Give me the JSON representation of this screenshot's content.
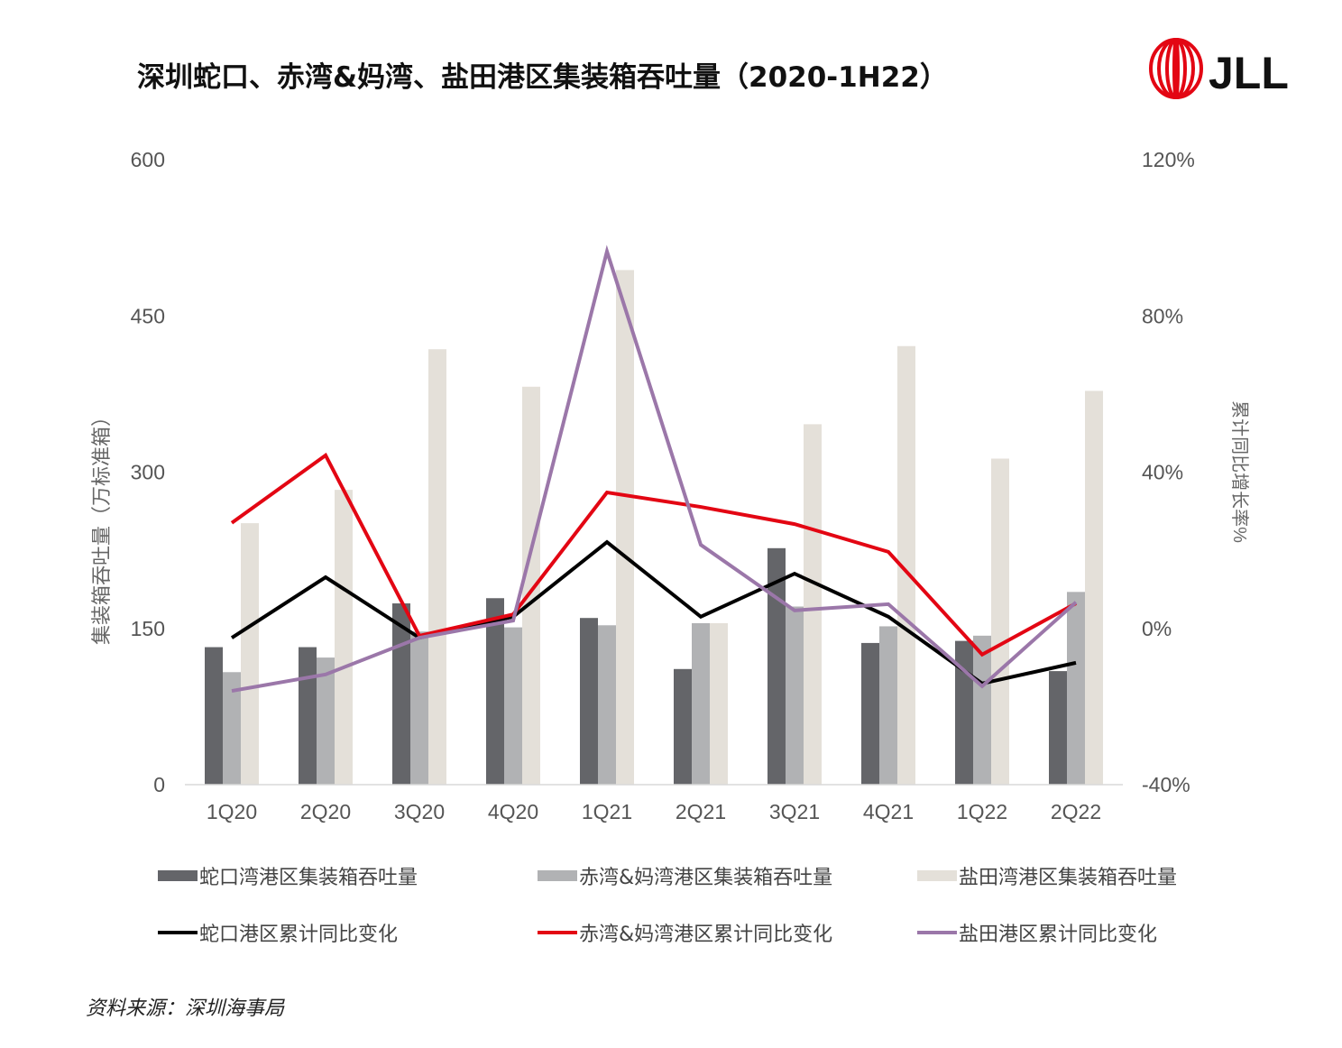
{
  "title": "深圳蛇口、赤湾&妈湾、盐田港区集装箱吞吐量（2020-1H22）",
  "logo": {
    "text": "JLL",
    "color": "#E30613"
  },
  "source": "资料来源：深圳海事局",
  "chart_data": {
    "type": "bar+line",
    "categories": [
      "1Q20",
      "2Q20",
      "3Q20",
      "4Q20",
      "1Q21",
      "2Q21",
      "3Q21",
      "4Q21",
      "1Q22",
      "2Q22"
    ],
    "ylabel": "集装箱吞吐量（万标准箱）",
    "y2label": "累计同比增长率%",
    "ylim": [
      0,
      600
    ],
    "yticks": [
      "0",
      "150",
      "300",
      "450",
      "600"
    ],
    "y2lim": [
      -40,
      120
    ],
    "y2ticks": [
      "-40%",
      "0%",
      "40%",
      "80%",
      "120%"
    ],
    "grid": false,
    "legend_position": "bottom",
    "bar_series": [
      {
        "name": "蛇口湾港区集装箱吞吐量",
        "color": "#646569",
        "values": [
          132,
          132,
          174,
          179,
          160,
          111,
          227,
          136,
          138,
          109
        ]
      },
      {
        "name": "赤湾&妈湾港区集装箱吞吐量",
        "color": "#B1B2B4",
        "values": [
          108,
          122,
          147,
          151,
          153,
          155,
          171,
          152,
          143,
          185
        ]
      },
      {
        "name": "盐田湾港区集装箱吞吐量",
        "color": "#E4E0D9",
        "values": [
          251,
          283,
          418,
          382,
          494,
          155,
          346,
          421,
          313,
          378
        ]
      }
    ],
    "line_series": [
      {
        "name": "蛇口港区累计同比变化",
        "color": "#000000",
        "values": [
          -2.4,
          13.1,
          -2.4,
          3.0,
          22.1,
          3.0,
          14.0,
          3.0,
          -14.1,
          -8.8
        ]
      },
      {
        "name": "赤湾&妈湾港区累计同比变化",
        "color": "#E30613",
        "values": [
          27.0,
          44.3,
          -1.9,
          3.6,
          34.8,
          31.1,
          26.7,
          19.6,
          -6.7,
          6.4
        ]
      },
      {
        "name": "盐田港区累计同比变化",
        "color": "#9B77A9",
        "values": [
          -16.0,
          -11.8,
          -2.4,
          2.0,
          96.5,
          21.4,
          4.6,
          6.2,
          -14.8,
          6.7
        ]
      }
    ]
  }
}
